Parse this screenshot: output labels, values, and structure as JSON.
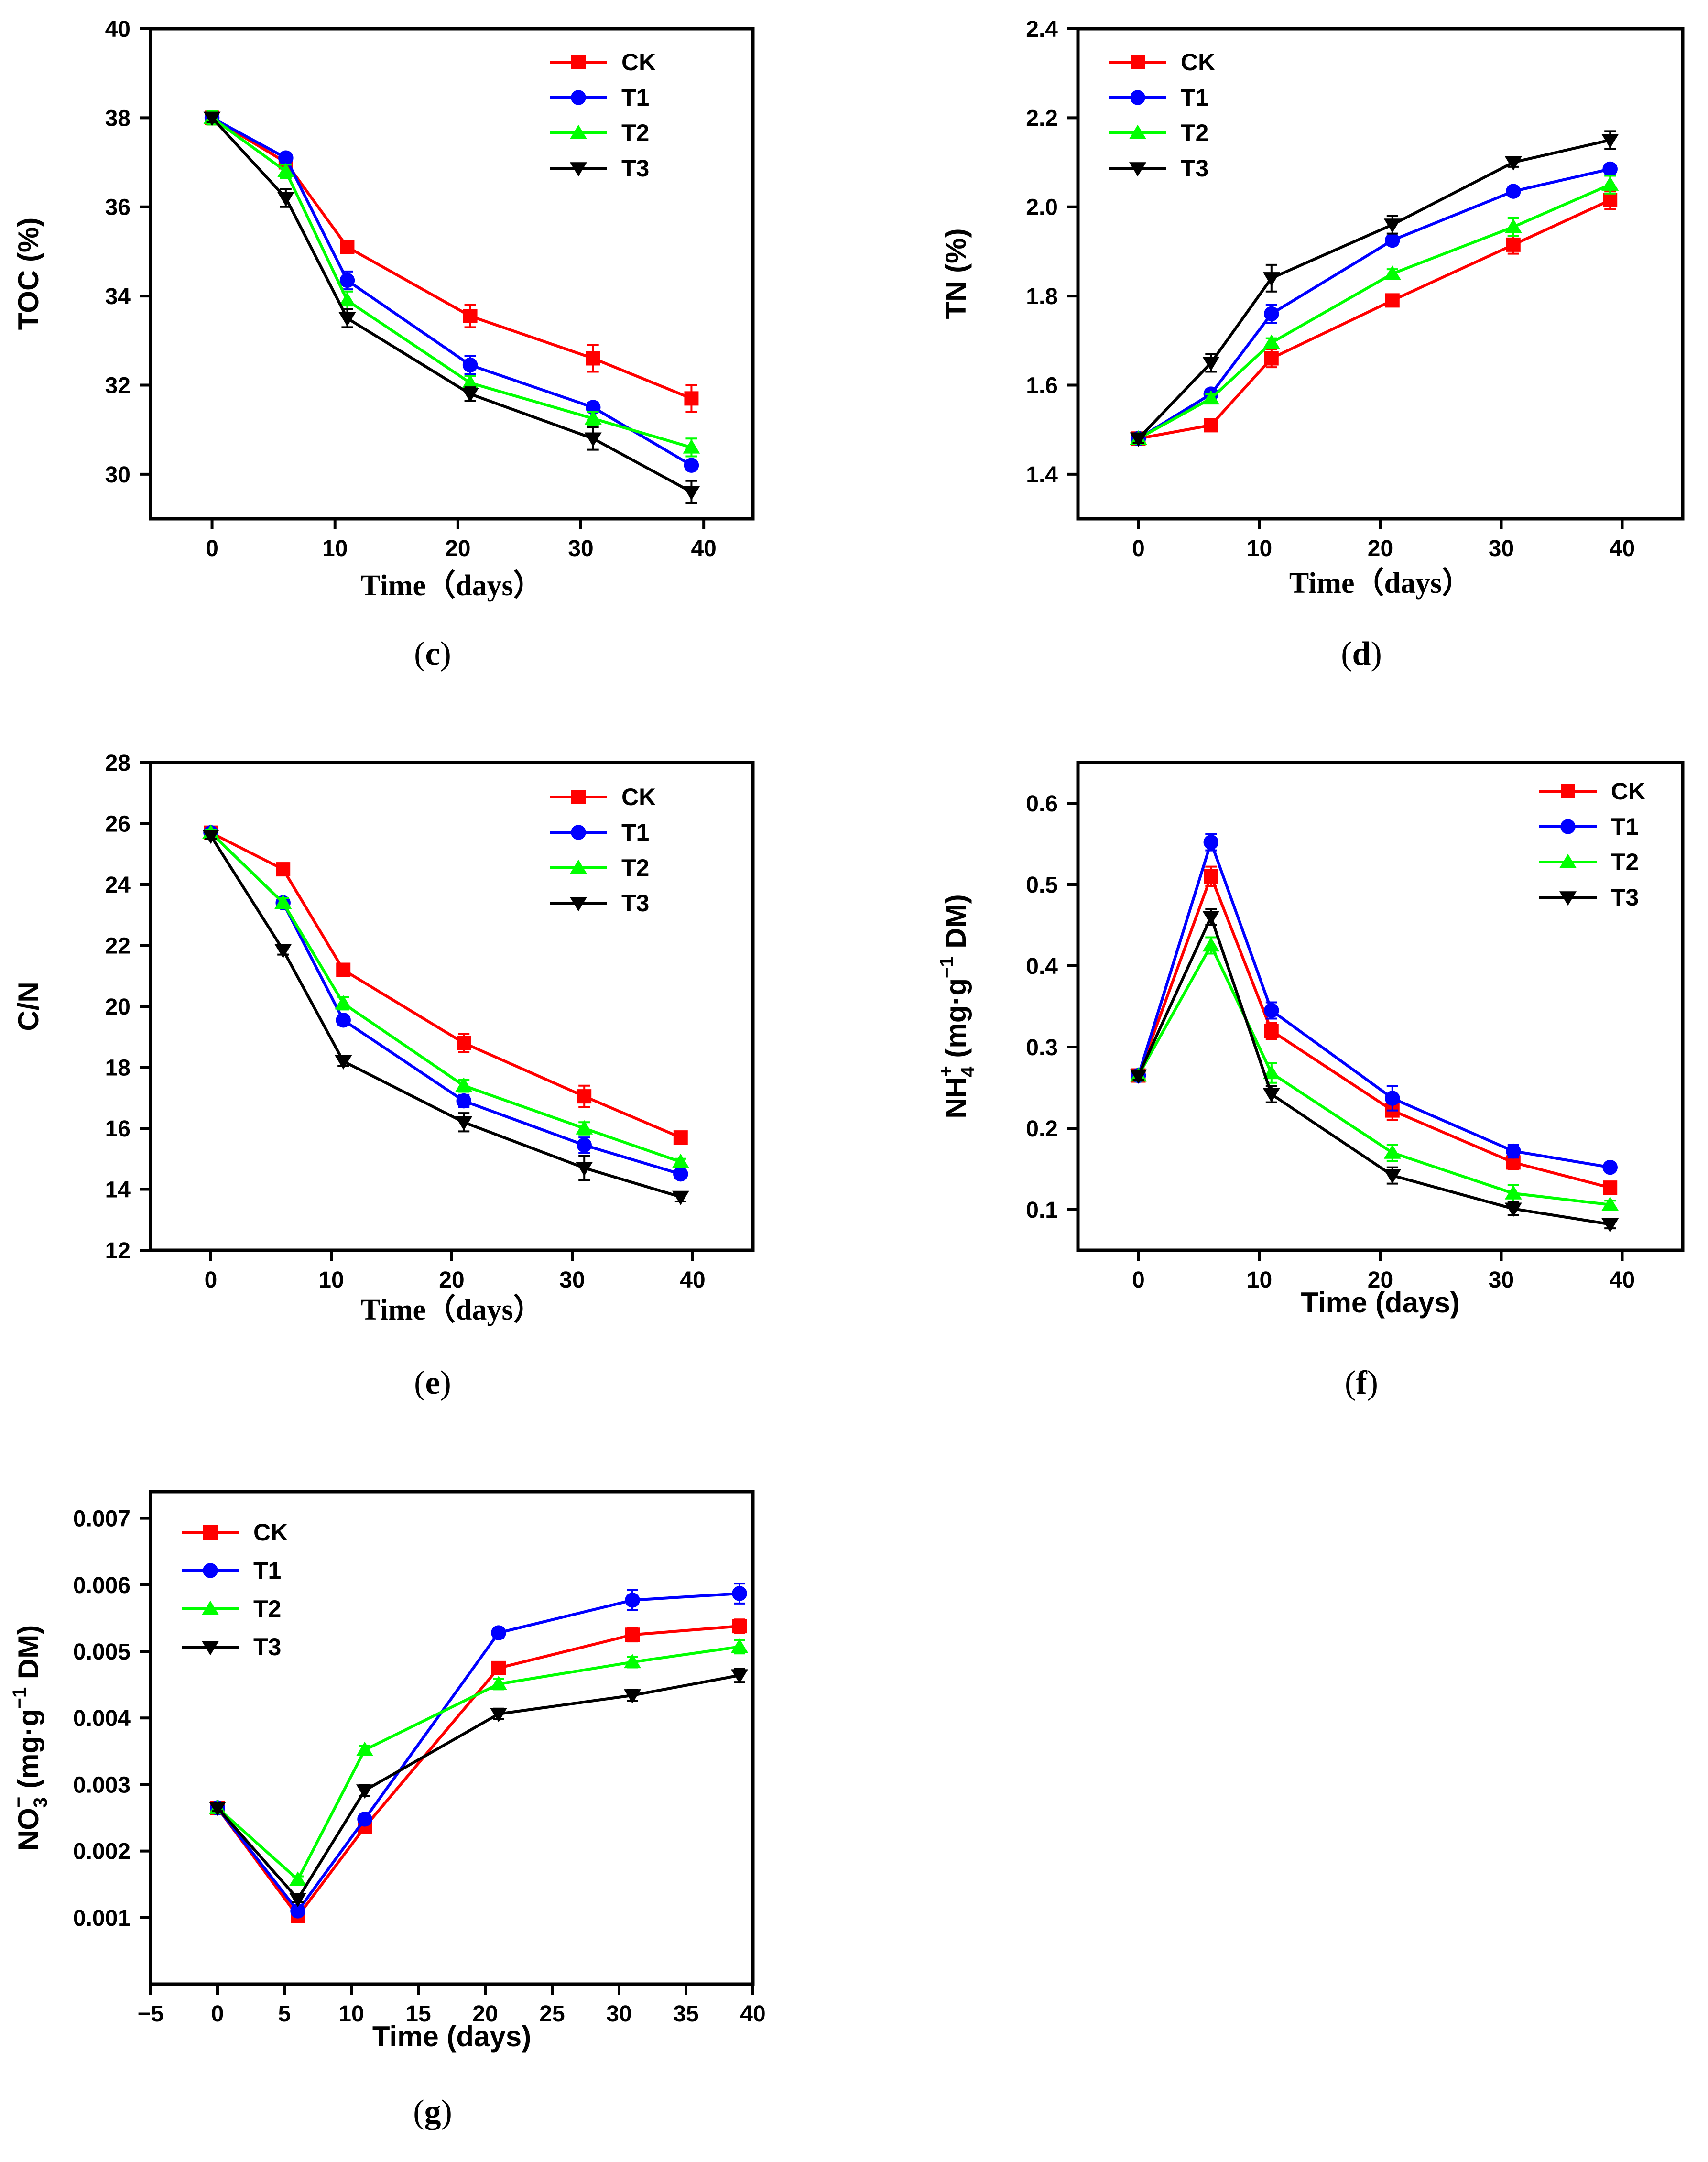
{
  "figure": {
    "series_colors": {
      "CK": "#ff0000",
      "T1": "#0000ff",
      "T2": "#00ff00",
      "T3": "#000000"
    },
    "series_markers": {
      "CK": "square",
      "T1": "circle",
      "T2": "triangle-up",
      "T3": "triangle-down"
    }
  },
  "chart_data": [
    {
      "id": "c",
      "caption": "(c)",
      "caption_letter": "c",
      "type": "line",
      "xlabel": "Time（days）",
      "ylabel": "TOC (%)",
      "xlim": [
        -5,
        44
      ],
      "ylim": [
        29,
        40
      ],
      "xticks": [
        0,
        10,
        20,
        30,
        40
      ],
      "yticks": [
        30,
        32,
        34,
        36,
        38,
        40
      ],
      "x": [
        0,
        6,
        11,
        21,
        31,
        39
      ],
      "series": [
        {
          "name": "CK",
          "values": [
            38.0,
            37.0,
            35.1,
            33.55,
            32.6,
            31.7
          ],
          "errors": [
            0.15,
            0.1,
            0.1,
            0.25,
            0.3,
            0.3
          ]
        },
        {
          "name": "T1",
          "values": [
            38.0,
            37.1,
            34.35,
            32.45,
            31.5,
            30.2
          ],
          "errors": [
            0.1,
            0.1,
            0.2,
            0.2,
            0.1,
            0.1
          ]
        },
        {
          "name": "T2",
          "values": [
            38.0,
            36.8,
            33.9,
            32.05,
            31.25,
            30.6
          ],
          "errors": [
            0.15,
            0.15,
            0.2,
            0.15,
            0.15,
            0.2
          ]
        },
        {
          "name": "T3",
          "values": [
            38.0,
            36.2,
            33.5,
            31.8,
            30.8,
            29.6
          ],
          "errors": [
            0.1,
            0.2,
            0.2,
            0.15,
            0.25,
            0.25
          ]
        }
      ],
      "legend": {
        "position": "top-right",
        "entries": [
          "CK",
          "T1",
          "T2",
          "T3"
        ]
      }
    },
    {
      "id": "d",
      "caption": "(d)",
      "caption_letter": "d",
      "type": "line",
      "xlabel": "Time（days）",
      "ylabel": "TN (%)",
      "xlim": [
        -5,
        45
      ],
      "ylim": [
        1.3,
        2.4
      ],
      "xticks": [
        0,
        10,
        20,
        30,
        40
      ],
      "yticks": [
        1.4,
        1.6,
        1.8,
        2.0,
        2.2,
        2.4
      ],
      "ytick_labels": [
        "1.4",
        "1.6",
        "1.8",
        "2.0",
        "2.2",
        "2.4"
      ],
      "x": [
        0,
        6,
        11,
        21,
        31,
        39
      ],
      "series": [
        {
          "name": "CK",
          "values": [
            1.48,
            1.51,
            1.66,
            1.79,
            1.915,
            2.015
          ],
          "errors": [
            0.01,
            0.01,
            0.02,
            0.01,
            0.02,
            0.02
          ]
        },
        {
          "name": "T1",
          "values": [
            1.48,
            1.58,
            1.76,
            1.925,
            2.035,
            2.085
          ],
          "errors": [
            0.01,
            0.01,
            0.02,
            0.01,
            0.01,
            0.01
          ]
        },
        {
          "name": "T2",
          "values": [
            1.48,
            1.57,
            1.695,
            1.85,
            1.955,
            2.05
          ],
          "errors": [
            0.01,
            0.01,
            0.01,
            0.01,
            0.02,
            0.02
          ]
        },
        {
          "name": "T3",
          "values": [
            1.48,
            1.65,
            1.84,
            1.96,
            2.1,
            2.15
          ],
          "errors": [
            0.01,
            0.02,
            0.03,
            0.02,
            0.01,
            0.02
          ]
        }
      ],
      "legend": {
        "position": "top-left",
        "entries": [
          "CK",
          "T1",
          "T2",
          "T3"
        ]
      }
    },
    {
      "id": "e",
      "caption": "(e)",
      "caption_letter": "e",
      "type": "line",
      "xlabel": "Time（days）",
      "ylabel": "C/N",
      "xlim": [
        -5,
        45
      ],
      "ylim": [
        12,
        28
      ],
      "xticks": [
        0,
        10,
        20,
        30,
        40
      ],
      "yticks": [
        12,
        14,
        16,
        18,
        20,
        22,
        24,
        26,
        28
      ],
      "x": [
        0,
        6,
        11,
        21,
        31,
        39
      ],
      "series": [
        {
          "name": "CK",
          "values": [
            25.7,
            24.5,
            21.2,
            18.8,
            17.05,
            15.7
          ],
          "errors": [
            0.1,
            0.2,
            0.15,
            0.3,
            0.35,
            0.15
          ]
        },
        {
          "name": "T1",
          "values": [
            25.7,
            23.4,
            19.55,
            16.9,
            15.45,
            14.5
          ],
          "errors": [
            0.1,
            0.15,
            0.15,
            0.2,
            0.25,
            0.1
          ]
        },
        {
          "name": "T2",
          "values": [
            25.7,
            23.4,
            20.1,
            17.4,
            16.0,
            14.9
          ],
          "errors": [
            0.1,
            0.15,
            0.2,
            0.2,
            0.2,
            0.1
          ]
        },
        {
          "name": "T3",
          "values": [
            25.6,
            21.85,
            18.2,
            16.2,
            14.7,
            13.75
          ],
          "errors": [
            0.1,
            0.15,
            0.15,
            0.3,
            0.4,
            0.15
          ]
        }
      ],
      "legend": {
        "position": "top-right",
        "entries": [
          "CK",
          "T1",
          "T2",
          "T3"
        ]
      }
    },
    {
      "id": "f",
      "caption": "(f)",
      "caption_letter": "f",
      "type": "line",
      "xlabel": "Time (days)",
      "ylabel": "NH4+ (mg·g−1 DM)",
      "ylabel_parts": {
        "a": "NH",
        "b": "4",
        "c": "+",
        "d": " (mg·g",
        "e": "−1",
        "f": " DM)"
      },
      "xlim": [
        -5,
        45
      ],
      "ylim": [
        0.05,
        0.65
      ],
      "xticks": [
        0,
        10,
        20,
        30,
        40
      ],
      "yticks": [
        0.1,
        0.2,
        0.3,
        0.4,
        0.5,
        0.6
      ],
      "x": [
        0,
        6,
        11,
        21,
        31,
        39
      ],
      "series": [
        {
          "name": "CK",
          "values": [
            0.265,
            0.51,
            0.32,
            0.222,
            0.158,
            0.127
          ],
          "errors": [
            0.005,
            0.012,
            0.01,
            0.012,
            0.008,
            0.005
          ]
        },
        {
          "name": "T1",
          "values": [
            0.265,
            0.552,
            0.345,
            0.237,
            0.172,
            0.152
          ],
          "errors": [
            0.005,
            0.01,
            0.01,
            0.015,
            0.008,
            0.005
          ]
        },
        {
          "name": "T2",
          "values": [
            0.265,
            0.425,
            0.268,
            0.17,
            0.12,
            0.106
          ],
          "errors": [
            0.005,
            0.01,
            0.012,
            0.01,
            0.01,
            0.005
          ]
        },
        {
          "name": "T3",
          "values": [
            0.265,
            0.46,
            0.242,
            0.142,
            0.101,
            0.082
          ],
          "errors": [
            0.005,
            0.01,
            0.01,
            0.01,
            0.008,
            0.005
          ]
        }
      ],
      "legend": {
        "position": "top-right",
        "entries": [
          "CK",
          "T1",
          "T2",
          "T3"
        ]
      }
    },
    {
      "id": "g",
      "caption": "(g)",
      "caption_letter": "g",
      "type": "line",
      "xlabel": "Time (days)",
      "ylabel": "NO3− (mg·g−1 DM)",
      "ylabel_parts": {
        "a": "NO",
        "b": "3",
        "c": "−",
        "d": " (mg·g",
        "e": "−1",
        "f": " DM)"
      },
      "xlim": [
        -5,
        40
      ],
      "ylim": [
        0.0,
        0.0074
      ],
      "xticks": [
        -5,
        0,
        5,
        10,
        15,
        20,
        25,
        30,
        35,
        40
      ],
      "xtick_labels": [
        "−5",
        "0",
        "5",
        "10",
        "15",
        "20",
        "25",
        "30",
        "35",
        "40"
      ],
      "yticks": [
        0.001,
        0.002,
        0.003,
        0.004,
        0.005,
        0.006,
        0.007
      ],
      "ytick_labels": [
        "0.001",
        "0.002",
        "0.003",
        "0.004",
        "0.005",
        "0.006",
        "0.007"
      ],
      "x": [
        0,
        6,
        11,
        21,
        31,
        39
      ],
      "series": [
        {
          "name": "CK",
          "values": [
            0.00265,
            0.00102,
            0.00236,
            0.00475,
            0.00525,
            0.00538
          ],
          "errors": [
            5e-05,
            4e-05,
            5e-05,
            8e-05,
            0.0001,
            0.0001
          ]
        },
        {
          "name": "T1",
          "values": [
            0.00265,
            0.0011,
            0.00248,
            0.00528,
            0.00577,
            0.00587
          ],
          "errors": [
            5e-05,
            5e-05,
            6e-05,
            8e-05,
            0.00015,
            0.00015
          ]
        },
        {
          "name": "T2",
          "values": [
            0.00265,
            0.00157,
            0.00352,
            0.00451,
            0.00484,
            0.00507
          ],
          "errors": [
            5e-05,
            5e-05,
            6e-05,
            8e-05,
            8e-05,
            0.0001
          ]
        },
        {
          "name": "T3",
          "values": [
            0.00265,
            0.00128,
            0.00291,
            0.00406,
            0.00434,
            0.00464
          ],
          "errors": [
            5e-05,
            5e-05,
            8e-05,
            8e-05,
            8e-05,
            0.0001
          ]
        }
      ],
      "legend": {
        "position": "top-left",
        "entries": [
          "CK",
          "T1",
          "T2",
          "T3"
        ]
      }
    }
  ]
}
